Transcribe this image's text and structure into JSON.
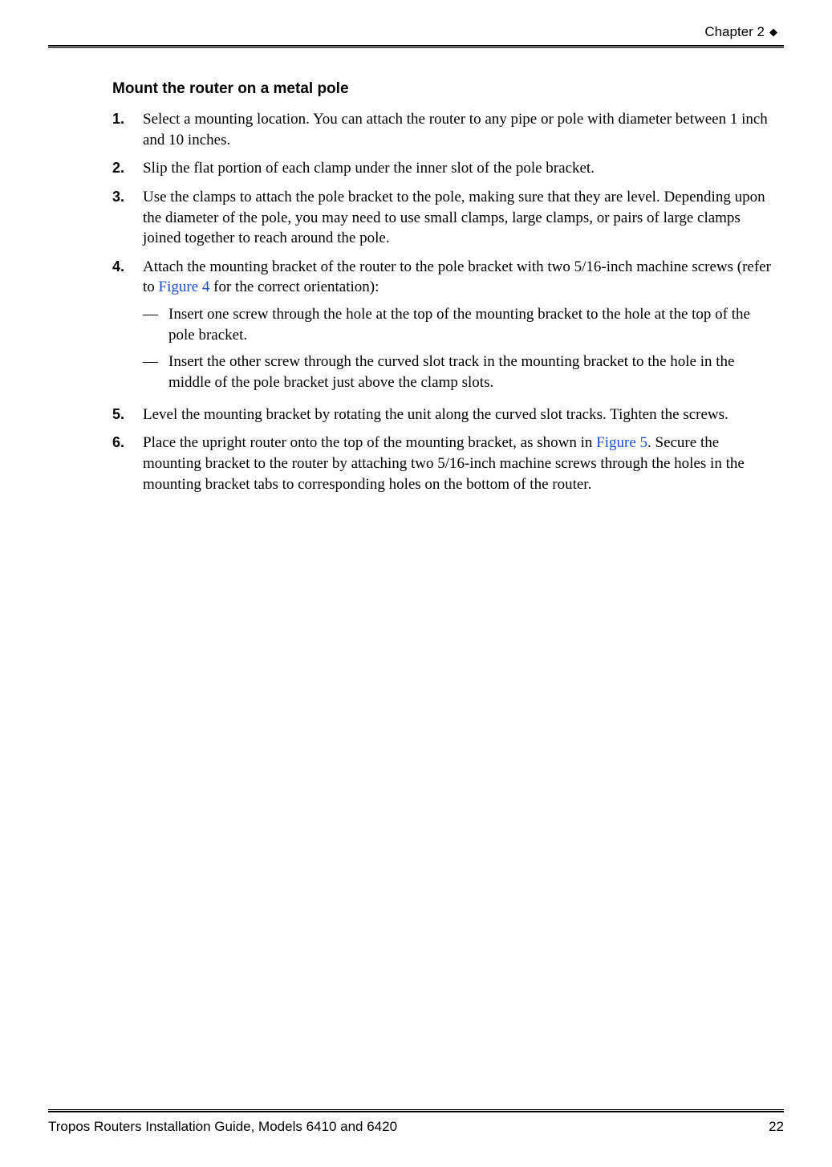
{
  "header": {
    "chapter": "Chapter 2",
    "diamond": "◆"
  },
  "section_title": "Mount the router on a metal pole",
  "steps": [
    {
      "num": "1.",
      "text": "Select a mounting location. You can attach the router to any pipe or pole with diameter between 1 inch and 10 inches."
    },
    {
      "num": "2.",
      "text": "Slip the flat portion of each clamp under the inner slot of the pole bracket."
    },
    {
      "num": "3.",
      "text": "Use the clamps to attach the pole bracket to the pole, making sure that they are level. Depending upon the diameter of the pole, you may need to use small clamps, large clamps, or pairs of large clamps joined together to reach around the pole."
    },
    {
      "num": "4.",
      "text_before_link": "Attach the mounting bracket of the router to the pole bracket with two 5/16-inch machine screws (refer to ",
      "link": "Figure 4",
      "text_after_link": " for the correct orientation):",
      "substeps": [
        {
          "dash": "—",
          "text": "Insert one screw through the hole at the top of the mounting bracket to the hole at the top of the pole bracket."
        },
        {
          "dash": "—",
          "text": "Insert the other screw through the curved slot track in the mounting bracket to the hole in the middle of the pole bracket just above the clamp slots."
        }
      ]
    },
    {
      "num": "5.",
      "text": "Level the mounting bracket by rotating the unit along the curved slot tracks. Tighten the screws."
    },
    {
      "num": "6.",
      "text_before_link": "Place the upright router onto the top of the mounting bracket, as shown in ",
      "link": "Figure 5",
      "text_after_link": ". Secure the mounting bracket to the router by attaching two 5/16-inch machine screws through the holes in the mounting bracket tabs to corresponding holes on the bottom of the router."
    }
  ],
  "footer": {
    "guide": "Tropos Routers Installation Guide, Models 6410 and 6420",
    "page": "22"
  },
  "colors": {
    "link": "#1a4fcf",
    "text": "#000000",
    "background": "#ffffff"
  }
}
